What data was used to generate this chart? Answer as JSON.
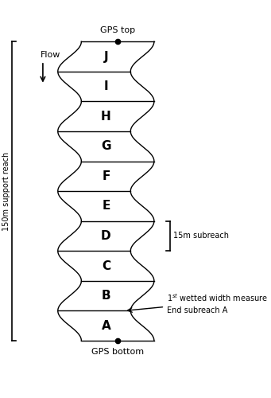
{
  "labels": [
    "J",
    "I",
    "H",
    "G",
    "F",
    "E",
    "D",
    "C",
    "B",
    "A"
  ],
  "n_segments": 10,
  "fig_width": 3.41,
  "fig_height": 5.0,
  "bg_color": "#ffffff",
  "segment_color": "#ffffff",
  "segment_edge_color": "#000000",
  "gps_top_label": "GPS top",
  "gps_bottom_label": "GPS bottom",
  "flow_label": "Flow",
  "reach_label": "150m support reach",
  "subreach_label": "15m subreach",
  "wetted_line1": "1$^{st}$ wetted width measure",
  "wetted_line2": "End subreach A",
  "lw": 1.0,
  "label_fontsize": 11,
  "annot_fontsize": 7,
  "bracket_fontsize": 7
}
